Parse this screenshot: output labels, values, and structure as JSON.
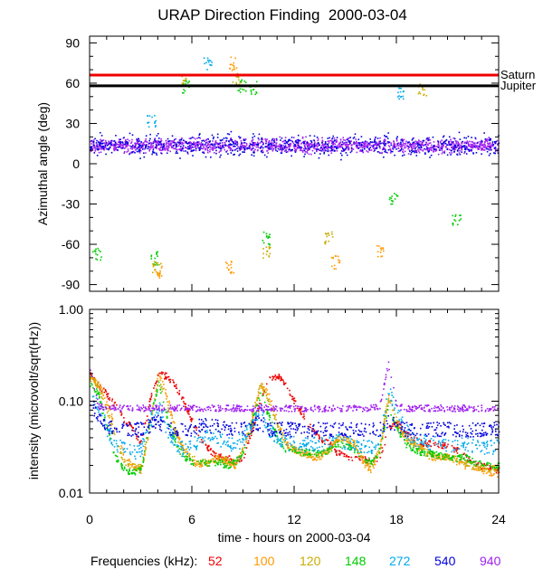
{
  "chart_data": [
    {
      "type": "scatter",
      "title": "URAP Direction Finding  2000-03-04",
      "xlabel": "",
      "ylabel": "Azimuthal angle (deg)",
      "xlim": [
        0,
        24
      ],
      "ylim": [
        -95,
        95
      ],
      "x_ticks": [
        0,
        6,
        12,
        18,
        24
      ],
      "y_ticks": [
        90,
        60,
        30,
        0,
        -30,
        -60,
        -90
      ],
      "y_tick_labels": [
        "90",
        "60",
        "30",
        "0",
        "-30",
        "-60",
        "-90"
      ],
      "reference_lines": [
        {
          "name": "Saturn",
          "value": 66,
          "color": "#ee0000"
        },
        {
          "name": "Jupiter",
          "value": 58,
          "color": "#000000"
        }
      ],
      "series": [
        {
          "name": "940",
          "color": "#a020f0",
          "band": {
            "from": 0,
            "to": 24,
            "center": 14,
            "spread": 5
          }
        },
        {
          "name": "540",
          "color": "#0000dd",
          "band": {
            "from": 0,
            "to": 24,
            "center": 14,
            "spread": 8
          }
        },
        {
          "name": "148",
          "color": "#00cc00",
          "clusters": [
            [
              5.6,
              58
            ],
            [
              8.9,
              58
            ],
            [
              9.6,
              57
            ],
            [
              10.3,
              -55
            ],
            [
              0.4,
              -67
            ],
            [
              3.8,
              -70
            ],
            [
              21.5,
              -42
            ],
            [
              17.8,
              -25
            ]
          ]
        },
        {
          "name": "120",
          "color": "#ccaa00",
          "clusters": [
            [
              5.4,
              62
            ],
            [
              8.6,
              64
            ],
            [
              14.0,
              -55
            ],
            [
              10.4,
              -65
            ],
            [
              3.9,
              -77
            ],
            [
              19.5,
              56
            ]
          ]
        },
        {
          "name": "100",
          "color": "#ff9900",
          "clusters": [
            [
              8.4,
              75
            ],
            [
              14.4,
              -73
            ],
            [
              17.0,
              -65
            ],
            [
              4.0,
              -80
            ],
            [
              8.2,
              -77
            ]
          ]
        },
        {
          "name": "272",
          "color": "#00aaee",
          "clusters": [
            [
              6.9,
              75
            ],
            [
              18.2,
              53
            ],
            [
              3.6,
              32
            ]
          ]
        }
      ]
    },
    {
      "type": "line",
      "title": "",
      "xlabel": "time - hours on 2000-03-04",
      "ylabel": "intensity (microvolt/sqrt(Hz))",
      "x": [
        0,
        0.5,
        1,
        1.5,
        2,
        2.5,
        3,
        3.5,
        4,
        4.5,
        5,
        5.5,
        6,
        6.5,
        7,
        7.5,
        8,
        8.5,
        9,
        9.5,
        10,
        10.5,
        11,
        11.5,
        12,
        12.5,
        13,
        13.5,
        14,
        14.5,
        15,
        15.5,
        16,
        16.5,
        17,
        17.5,
        18,
        18.5,
        19,
        19.5,
        20,
        20.5,
        21,
        21.5,
        22,
        22.5,
        23,
        23.5,
        24
      ],
      "xlim": [
        0,
        24
      ],
      "ylim": [
        0.01,
        1.0
      ],
      "yscale": "log",
      "x_ticks": [
        0,
        6,
        12,
        18,
        24
      ],
      "x_tick_labels": [
        "0",
        "6",
        "12",
        "18",
        "24"
      ],
      "y_ticks": [
        1.0,
        0.1,
        0.01
      ],
      "y_tick_labels": [
        "1.00",
        "0.10",
        "0.01"
      ],
      "series": [
        {
          "name": "52",
          "color": "#ee0000",
          "values": [
            0.2,
            0.15,
            0.12,
            0.09,
            0.065,
            0.05,
            0.035,
            0.1,
            0.2,
            0.19,
            0.15,
            0.1,
            0.06,
            0.04,
            0.03,
            0.025,
            0.025,
            0.022,
            0.025,
            0.05,
            0.1,
            0.18,
            0.19,
            0.15,
            0.1,
            0.07,
            0.05,
            0.04,
            0.035,
            0.028,
            0.025,
            0.025,
            0.024,
            0.022,
            0.025,
            0.05,
            0.06,
            0.045,
            0.04,
            0.035,
            0.035,
            0.034,
            0.033,
            0.03,
            0.025,
            0.022,
            0.02,
            0.019,
            0.018
          ]
        },
        {
          "name": "100",
          "color": "#ff9900",
          "values": [
            0.19,
            0.16,
            0.1,
            0.05,
            0.025,
            0.02,
            0.018,
            0.05,
            0.2,
            0.12,
            0.05,
            0.03,
            0.022,
            0.02,
            0.022,
            0.025,
            0.022,
            0.02,
            0.03,
            0.06,
            0.15,
            0.12,
            0.06,
            0.035,
            0.03,
            0.028,
            0.025,
            0.025,
            0.03,
            0.04,
            0.04,
            0.035,
            0.022,
            0.018,
            0.03,
            0.12,
            0.06,
            0.04,
            0.035,
            0.03,
            0.025,
            0.025,
            0.025,
            0.022,
            0.02,
            0.02,
            0.018,
            0.017,
            0.016
          ]
        },
        {
          "name": "120",
          "color": "#ccaa00",
          "values": [
            0.18,
            0.15,
            0.08,
            0.04,
            0.022,
            0.02,
            0.019,
            0.06,
            0.17,
            0.1,
            0.045,
            0.03,
            0.025,
            0.022,
            0.022,
            0.024,
            0.023,
            0.022,
            0.03,
            0.07,
            0.16,
            0.1,
            0.055,
            0.035,
            0.03,
            0.027,
            0.026,
            0.026,
            0.03,
            0.04,
            0.04,
            0.035,
            0.025,
            0.02,
            0.03,
            0.11,
            0.06,
            0.04,
            0.035,
            0.03,
            0.027,
            0.026,
            0.025,
            0.024,
            0.022,
            0.02,
            0.019,
            0.019,
            0.019
          ]
        },
        {
          "name": "148",
          "color": "#00cc00",
          "values": [
            0.16,
            0.12,
            0.05,
            0.025,
            0.018,
            0.017,
            0.018,
            0.06,
            0.16,
            0.07,
            0.035,
            0.025,
            0.022,
            0.022,
            0.021,
            0.022,
            0.02,
            0.022,
            0.028,
            0.06,
            0.12,
            0.07,
            0.04,
            0.03,
            0.03,
            0.028,
            0.028,
            0.028,
            0.03,
            0.035,
            0.033,
            0.03,
            0.024,
            0.022,
            0.03,
            0.09,
            0.05,
            0.035,
            0.03,
            0.028,
            0.027,
            0.026,
            0.025,
            0.024,
            0.025,
            0.022,
            0.021,
            0.02,
            0.02
          ]
        },
        {
          "name": "272",
          "color": "#00aaee",
          "values": [
            0.12,
            0.09,
            0.05,
            0.035,
            0.03,
            0.028,
            0.03,
            0.06,
            0.09,
            0.05,
            0.035,
            0.03,
            0.033,
            0.04,
            0.045,
            0.04,
            0.035,
            0.034,
            0.04,
            0.06,
            0.08,
            0.05,
            0.04,
            0.035,
            0.035,
            0.034,
            0.034,
            0.035,
            0.036,
            0.038,
            0.036,
            0.035,
            0.033,
            0.032,
            0.04,
            0.13,
            0.08,
            0.05,
            0.04,
            0.037,
            0.036,
            0.035,
            0.034,
            0.034,
            0.034,
            0.033,
            0.032,
            0.032,
            0.032
          ]
        },
        {
          "name": "540",
          "color": "#0000dd",
          "values": [
            0.1,
            0.07,
            0.055,
            0.05,
            0.05,
            0.05,
            0.05,
            0.055,
            0.06,
            0.05,
            0.05,
            0.05,
            0.05,
            0.055,
            0.055,
            0.055,
            0.05,
            0.05,
            0.05,
            0.055,
            0.06,
            0.05,
            0.05,
            0.05,
            0.05,
            0.05,
            0.05,
            0.05,
            0.05,
            0.05,
            0.05,
            0.05,
            0.05,
            0.05,
            0.05,
            0.06,
            0.055,
            0.05,
            0.05,
            0.05,
            0.05,
            0.05,
            0.05,
            0.05,
            0.05,
            0.05,
            0.05,
            0.05,
            0.05
          ]
        },
        {
          "name": "940",
          "color": "#a020f0",
          "values": [
            0.22,
            0.09,
            0.085,
            0.085,
            0.085,
            0.085,
            0.085,
            0.085,
            0.085,
            0.085,
            0.085,
            0.085,
            0.085,
            0.085,
            0.085,
            0.085,
            0.085,
            0.085,
            0.085,
            0.085,
            0.085,
            0.085,
            0.085,
            0.085,
            0.085,
            0.085,
            0.085,
            0.085,
            0.085,
            0.085,
            0.085,
            0.085,
            0.085,
            0.085,
            0.09,
            0.26,
            0.09,
            0.085,
            0.085,
            0.085,
            0.085,
            0.085,
            0.085,
            0.085,
            0.085,
            0.085,
            0.085,
            0.085,
            0.085
          ]
        }
      ]
    }
  ],
  "legend": {
    "label": "Frequencies (kHz):",
    "items": [
      {
        "label": "52",
        "color": "#ee0000"
      },
      {
        "label": "100",
        "color": "#ff9900"
      },
      {
        "label": "120",
        "color": "#ccaa00"
      },
      {
        "label": "148",
        "color": "#00cc00"
      },
      {
        "label": "272",
        "color": "#00aaee"
      },
      {
        "label": "540",
        "color": "#0000dd"
      },
      {
        "label": "940",
        "color": "#a020f0"
      }
    ]
  }
}
